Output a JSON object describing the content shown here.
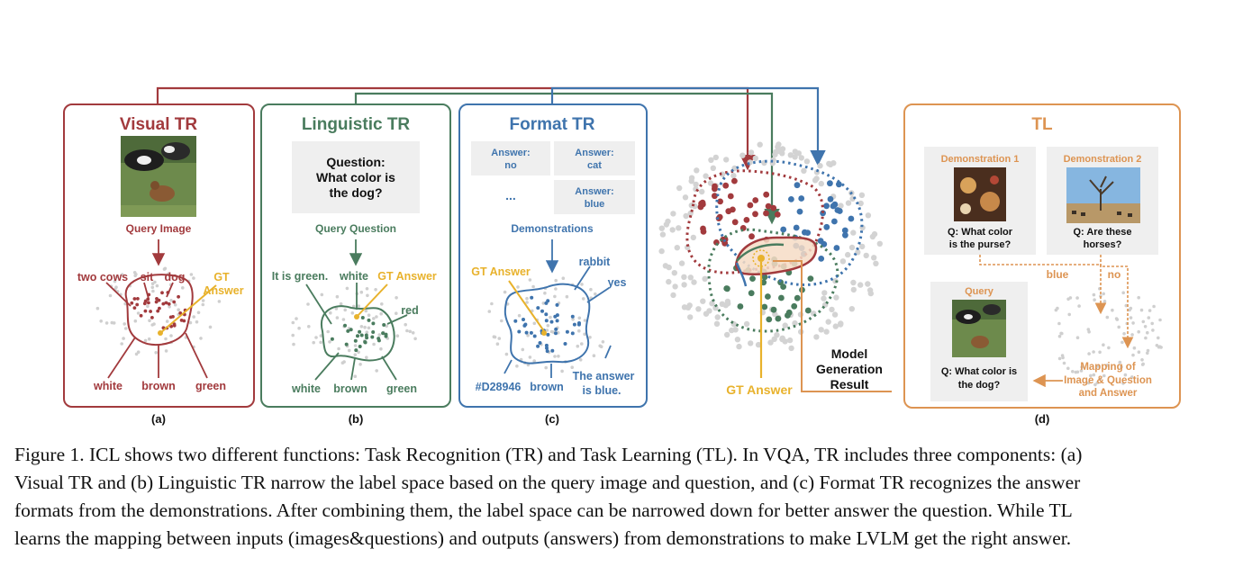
{
  "panels": {
    "visual": {
      "title": "Visual TR",
      "query_label": "Query Image",
      "labels": [
        "two cows",
        "sit",
        "dog",
        "GT",
        "Answer",
        "white",
        "brown",
        "green"
      ],
      "sub": "(a)"
    },
    "linguistic": {
      "title": "Linguistic TR",
      "question_lines": [
        "Question:",
        "What color is",
        "the dog?"
      ],
      "query_label": "Query Question",
      "labels": [
        "It is green.",
        "white",
        "GT Answer",
        "red",
        "white",
        "brown",
        "green"
      ],
      "sub": "(b)"
    },
    "format": {
      "title": "Format TR",
      "demo_cells": [
        [
          "Answer:",
          "no"
        ],
        [
          "Answer:",
          "cat"
        ],
        [
          "Answer:",
          "blue"
        ]
      ],
      "ellipsis": "...",
      "demo_label": "Demonstrations",
      "labels": [
        "GT Answer",
        "rabbit",
        "yes",
        "The answer",
        "is blue.",
        "#D28946",
        "brown"
      ],
      "sub": "(c)"
    },
    "center": {
      "gt_answer": "GT Answer",
      "model_lines": [
        "Model",
        "Generation",
        "Result"
      ]
    },
    "tl": {
      "title": "TL",
      "demo1_title": "Demonstration 1",
      "demo1_q": [
        "Q: What color",
        "is the purse?"
      ],
      "demo2_title": "Demonstration 2",
      "demo2_q": [
        "Q: Are these",
        "horses?"
      ],
      "ans1": "blue",
      "ans2": "no",
      "query_title": "Query",
      "query_q": [
        "Q: What color is",
        "the dog?"
      ],
      "mapping": [
        "Mapping of",
        "Image & Question",
        "and Answer"
      ],
      "sub": "(d)"
    }
  },
  "colors": {
    "visual": "#a23a3d",
    "linguistic": "#4a7c5e",
    "format": "#3f74ad",
    "tl": "#dd9452",
    "gt": "#e8b22c",
    "dots": "#cfcfcf"
  },
  "caption": [
    "Figure 1. ICL shows two different functions: Task Recognition (TR) and Task Learning (TL). In VQA, TR includes three components: (a)",
    "Visual TR and (b) Linguistic TR narrow the label space based on the query image and question, and (c) Format TR recognizes the answer",
    "formats from the demonstrations. After combining them, the label space can be narrowed down for better answer the question. While TL",
    "learns the mapping between inputs (images&questions) and outputs (answers) from demonstrations to make LVLM get the right answer."
  ]
}
